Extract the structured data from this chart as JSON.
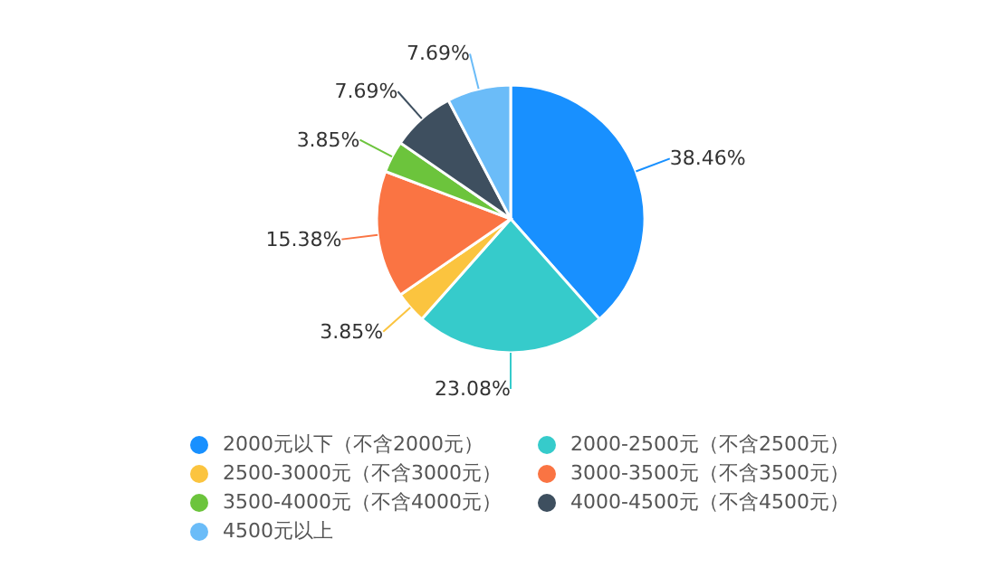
{
  "chart_data": {
    "type": "pie",
    "categories": [
      "2000元以下（不含2000元）",
      "2000-2500元（不含2500元）",
      "2500-3000元（不含3000元）",
      "3000-3500元（不含3500元）",
      "3500-4000元（不含4000元）",
      "4000-4500元（不含4500元）",
      "4500元以上"
    ],
    "values": [
      38.46,
      23.08,
      3.85,
      15.38,
      3.85,
      7.69,
      7.69
    ],
    "colors": [
      "#1890ff",
      "#36cbcb",
      "#fbc43f",
      "#fa7443",
      "#6cc43c",
      "#3e4f5f",
      "#6bbcf8"
    ],
    "value_labels": [
      "38.46%",
      "23.08%",
      "3.85%",
      "15.38%",
      "3.85%",
      "7.69%",
      "7.69%"
    ],
    "legend": "bottom"
  }
}
